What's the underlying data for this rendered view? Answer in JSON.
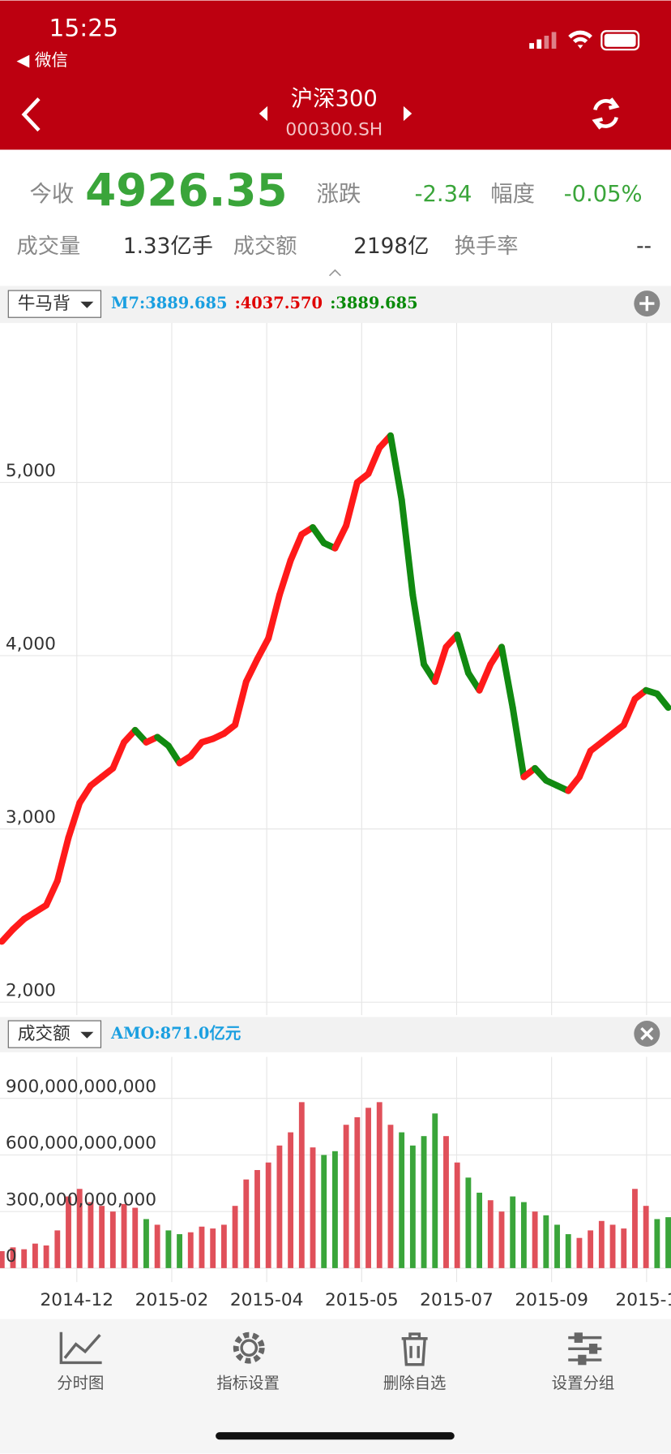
{
  "status_bar": {
    "time": "15:25",
    "back_app": "◀ 微信"
  },
  "header": {
    "title": "沪深300",
    "code": "000300.SH"
  },
  "quote": {
    "close_label": "今收",
    "close": "4926.35",
    "change_label": "涨跌",
    "change": "-2.34",
    "pct_label": "幅度",
    "pct": "-0.05%",
    "volume_label": "成交量",
    "volume": "1.33亿手",
    "amount_label": "成交额",
    "amount": "2198亿",
    "turnover_label": "换手率",
    "turnover": "--"
  },
  "chart_data": [
    {
      "type": "line",
      "indicator": "牛马背",
      "legend": [
        {
          "text": "M7:3889.685",
          "color": "#1a9fe0"
        },
        {
          "text": ":4037.570",
          "color": "#e00000"
        },
        {
          "text": ":3889.685",
          "color": "#0a8a0a"
        }
      ],
      "rise_color": "#ff1a1a",
      "fall_color": "#118a11",
      "values": [
        2350,
        2420,
        2480,
        2520,
        2560,
        2700,
        2950,
        3150,
        3250,
        3300,
        3350,
        3500,
        3570,
        3500,
        3530,
        3480,
        3380,
        3420,
        3500,
        3520,
        3550,
        3600,
        3850,
        3980,
        4100,
        4350,
        4550,
        4700,
        4740,
        4650,
        4620,
        4750,
        5000,
        5050,
        5200,
        5270,
        4900,
        4350,
        3950,
        3850,
        4050,
        4120,
        3900,
        3800,
        3950,
        4050,
        3700,
        3300,
        3350,
        3280,
        3250,
        3220,
        3300,
        3450,
        3500,
        3550,
        3600,
        3750,
        3800,
        3780,
        3700
      ],
      "ylim": [
        1925,
        5920
      ],
      "yticks": [
        {
          "value": 2000,
          "label": "2,000"
        },
        {
          "value": 3000,
          "label": "3,000"
        },
        {
          "value": 4000,
          "label": "4,000"
        },
        {
          "value": 5000,
          "label": "5,000"
        }
      ],
      "xticks": [
        "2014-12",
        "2015-02",
        "2015-04",
        "2015-05",
        "2015-07",
        "2015-09",
        "2015-1"
      ],
      "grid": true
    },
    {
      "type": "bar",
      "indicator": "成交额",
      "legend": [
        {
          "text": "AMO:871.0亿元",
          "color": "#1a9fe0"
        }
      ],
      "rise_color": "#e0505a",
      "fall_color": "#3aa53a",
      "values": [
        90000000000,
        110000000000,
        100000000000,
        130000000000,
        120000000000,
        200000000000,
        380000000000,
        420000000000,
        350000000000,
        330000000000,
        300000000000,
        340000000000,
        320000000000,
        260000000000,
        230000000000,
        200000000000,
        180000000000,
        190000000000,
        220000000000,
        210000000000,
        230000000000,
        330000000000,
        470000000000,
        520000000000,
        560000000000,
        650000000000,
        720000000000,
        880000000000,
        640000000000,
        600000000000,
        620000000000,
        760000000000,
        800000000000,
        850000000000,
        880000000000,
        760000000000,
        720000000000,
        650000000000,
        700000000000,
        820000000000,
        700000000000,
        560000000000,
        480000000000,
        400000000000,
        360000000000,
        300000000000,
        380000000000,
        350000000000,
        300000000000,
        280000000000,
        230000000000,
        180000000000,
        160000000000,
        200000000000,
        250000000000,
        230000000000,
        210000000000,
        420000000000,
        330000000000,
        260000000000,
        270000000000
      ],
      "ylim": [
        -74000000000,
        1120000000000
      ],
      "yticks": [
        {
          "value": 0,
          "label": "0"
        },
        {
          "value": 300000000000,
          "label": "300,000,000,000"
        },
        {
          "value": 600000000000,
          "label": "600,000,000,000"
        },
        {
          "value": 900000000000,
          "label": "900,000,000,000"
        }
      ],
      "grid": true
    }
  ],
  "toolbar": [
    "分时图",
    "指标设置",
    "删除自选",
    "设置分组"
  ]
}
